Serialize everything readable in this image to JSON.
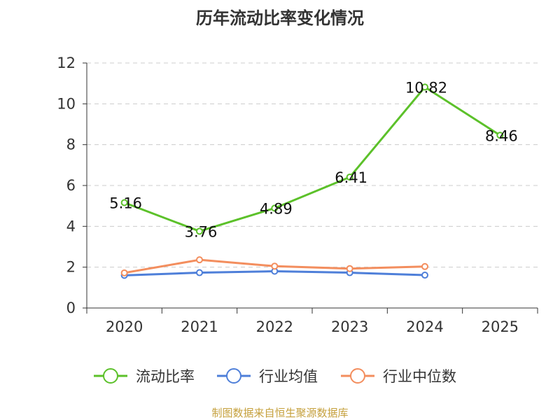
{
  "chart_data": {
    "type": "line",
    "title": "历年流动比率变化情况",
    "categories": [
      "2020",
      "2021",
      "2022",
      "2023",
      "2024",
      "2025"
    ],
    "ylim": [
      0,
      12
    ],
    "yticks": [
      0,
      2,
      4,
      6,
      8,
      10,
      12
    ],
    "xlabel": "",
    "ylabel": "",
    "grid": true,
    "legend_position": "bottom",
    "series": [
      {
        "name": "流动比率",
        "color": "#5cc12a",
        "values": [
          5.16,
          3.76,
          4.89,
          6.41,
          10.82,
          8.46
        ],
        "labels": [
          "5.16",
          "3.76",
          "4.89",
          "6.41",
          "10.82",
          "8.46"
        ]
      },
      {
        "name": "行业均值",
        "color": "#4e7fd9",
        "values": [
          1.6,
          1.73,
          1.8,
          1.73,
          1.61,
          null
        ]
      },
      {
        "name": "行业中位数",
        "color": "#f38e5e",
        "values": [
          1.72,
          2.36,
          2.05,
          1.93,
          2.03,
          null
        ]
      }
    ]
  },
  "footer": {
    "source": "制图数据来自恒生聚源数据库",
    "color": "#c5a03c"
  }
}
